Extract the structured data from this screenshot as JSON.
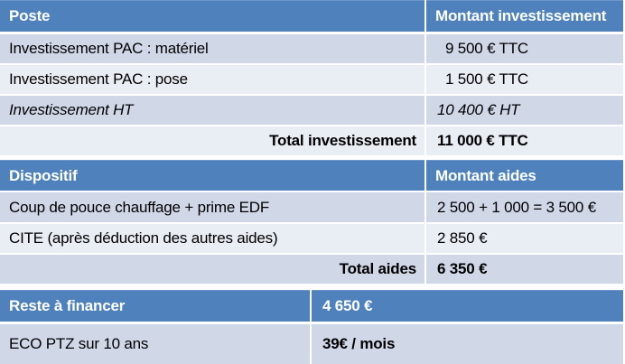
{
  "colors": {
    "header_bg": "#4f81bd",
    "row_dark": "#d0d8e8",
    "row_light": "#e9edf4",
    "header_text": "#ffffff",
    "body_text": "#000000"
  },
  "sections": [
    {
      "header": {
        "col1": "Poste",
        "col2": "Montant investissement"
      },
      "rows": [
        {
          "label": "Investissement PAC : matériel",
          "value": "9 500 € TTC"
        },
        {
          "label": "Investissement PAC : pose",
          "value": "1 500 € TTC"
        },
        {
          "label": "Investissement HT",
          "value": "10 400 € HT"
        },
        {
          "label": "Total investissement",
          "value": "11 000 € TTC"
        }
      ]
    },
    {
      "header": {
        "col1": "Dispositif",
        "col2": "Montant aides"
      },
      "rows": [
        {
          "label": "Coup de pouce chauffage + prime EDF",
          "value": "2 500 + 1 000 = 3 500 €"
        },
        {
          "label": "CITE (après déduction des autres aides)",
          "value": "2 850 €"
        },
        {
          "label": "Total aides",
          "value": "6 350 €"
        }
      ]
    },
    {
      "header": {
        "col1": "Reste à financer",
        "col2": "4 650 €"
      },
      "rows": [
        {
          "label": "ECO PTZ sur 10 ans",
          "value": "39€ / mois"
        }
      ]
    }
  ]
}
